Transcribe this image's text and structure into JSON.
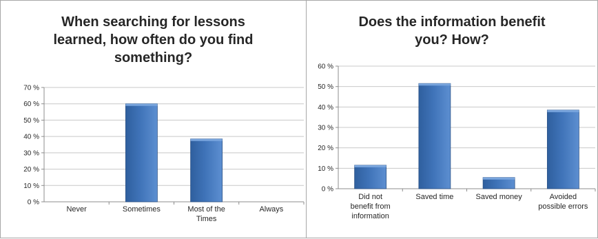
{
  "chart_data": [
    {
      "type": "bar",
      "title": "When searching for lessons learned, how often do you find something?",
      "title_lines": [
        "When searching for lessons",
        "learned, how often do you find",
        "something?"
      ],
      "categories": [
        [
          "Never"
        ],
        [
          "Sometimes"
        ],
        [
          "Most of the",
          "Times"
        ],
        [
          "Always"
        ]
      ],
      "values": [
        0,
        60,
        38.5,
        0
      ],
      "ylim": [
        0,
        70
      ],
      "yticks": [
        "0 %",
        "10 %",
        "20 %",
        "30 %",
        "40 %",
        "50 %",
        "60 %",
        "70 %"
      ],
      "grid": true,
      "bar_color": "#3f73b8"
    },
    {
      "type": "bar",
      "title": "Does the information benefit you? How?",
      "title_lines": [
        "Does the information benefit",
        "you? How?"
      ],
      "categories": [
        [
          "Did not",
          "benefit from",
          "information"
        ],
        [
          "Saved time"
        ],
        [
          "Saved money"
        ],
        [
          "Avoided",
          "possible errors"
        ]
      ],
      "values": [
        11.5,
        51.5,
        5.5,
        38.5
      ],
      "ylim": [
        0,
        60
      ],
      "yticks": [
        "0 %",
        "10 %",
        "20 %",
        "30 %",
        "40 %",
        "50 %",
        "60 %"
      ],
      "grid": true,
      "bar_color": "#3f73b8"
    }
  ]
}
